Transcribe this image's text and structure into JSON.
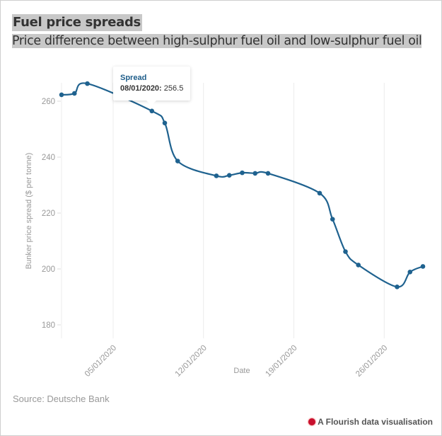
{
  "header": {
    "title": "Fuel price spreads",
    "subtitle": "Price difference between high-sulphur fuel oil and low-sulphur fuel oil"
  },
  "footer": {
    "source": "Source: Deutsche Bank",
    "credit": "A Flourish data visualisation",
    "credit_icon": "flourish-logo-icon"
  },
  "tooltip": {
    "series": "Spread",
    "date": "08/01/2020:",
    "value": "256.5"
  },
  "colors": {
    "line": "#1f628f",
    "grid": "#ececec",
    "accent": "#c8102e"
  },
  "chart_data": {
    "type": "line",
    "title": "Fuel price spreads",
    "subtitle": "Price difference between high-sulphur fuel oil and low-sulphur fuel oil",
    "xlabel": "Date",
    "ylabel": "Bunker price spread ($ per tonne)",
    "ylim": [
      176,
      268
    ],
    "yticks": [
      180,
      200,
      220,
      240,
      260
    ],
    "xticks": [
      "05/01/2020",
      "12/01/2020",
      "19/01/2020",
      "26/01/2020"
    ],
    "xtick_days": [
      5,
      12,
      19,
      26
    ],
    "xlim_days": [
      0.6,
      29.8
    ],
    "grid": true,
    "legend": "none",
    "series": [
      {
        "name": "Spread",
        "x": [
          "01/01/2020",
          "02/01/2020",
          "03/01/2020",
          "08/01/2020",
          "09/01/2020",
          "10/01/2020",
          "13/01/2020",
          "14/01/2020",
          "15/01/2020",
          "16/01/2020",
          "17/01/2020",
          "21/01/2020",
          "22/01/2020",
          "23/01/2020",
          "24/01/2020",
          "27/01/2020",
          "28/01/2020",
          "29/01/2020"
        ],
        "x_days": [
          1,
          2,
          3,
          8,
          9,
          10,
          13,
          14,
          15,
          16,
          17,
          21,
          22,
          23,
          24,
          27,
          28,
          29
        ],
        "values": [
          262.3,
          262.8,
          266.3,
          256.5,
          252.2,
          238.6,
          233.3,
          233.5,
          234.4,
          234.2,
          234.2,
          227.1,
          217.8,
          206.2,
          201.4,
          193.6,
          198.9,
          200.9
        ]
      }
    ]
  }
}
